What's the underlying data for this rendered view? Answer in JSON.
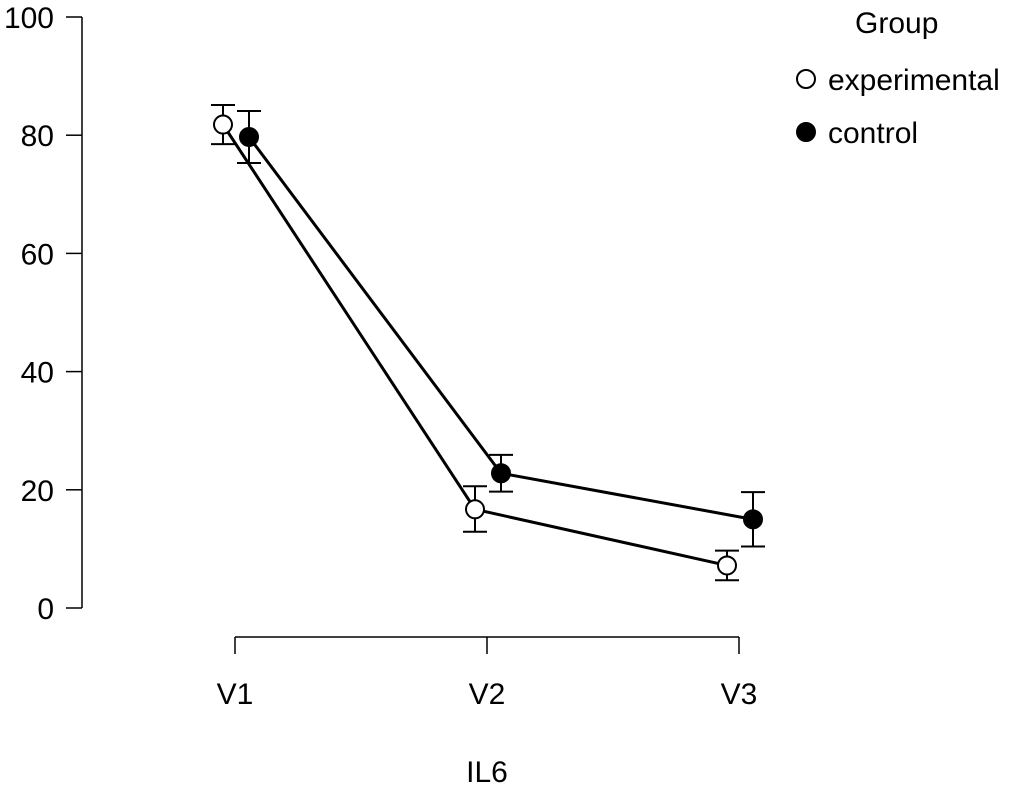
{
  "chart_data": {
    "type": "line",
    "xlabel": "IL6",
    "ylabel": "",
    "categories": [
      "V1",
      "V2",
      "V3"
    ],
    "ylim": [
      0,
      100
    ],
    "yticks": [
      0,
      20,
      40,
      60,
      80,
      100
    ],
    "grid": false,
    "legend": {
      "title": "Group",
      "placement": "top-right"
    },
    "series": [
      {
        "name": "experimental",
        "marker": "open-circle",
        "color": "#000000",
        "values": [
          81.8,
          16.7,
          7.2
        ],
        "error_low": [
          78.5,
          12.9,
          4.7
        ],
        "error_high": [
          85.1,
          20.6,
          9.7
        ]
      },
      {
        "name": "control",
        "marker": "filled-circle",
        "color": "#000000",
        "values": [
          79.7,
          22.8,
          15.0
        ],
        "error_low": [
          75.3,
          19.7,
          10.4
        ],
        "error_high": [
          84.1,
          25.9,
          19.6
        ]
      }
    ]
  }
}
